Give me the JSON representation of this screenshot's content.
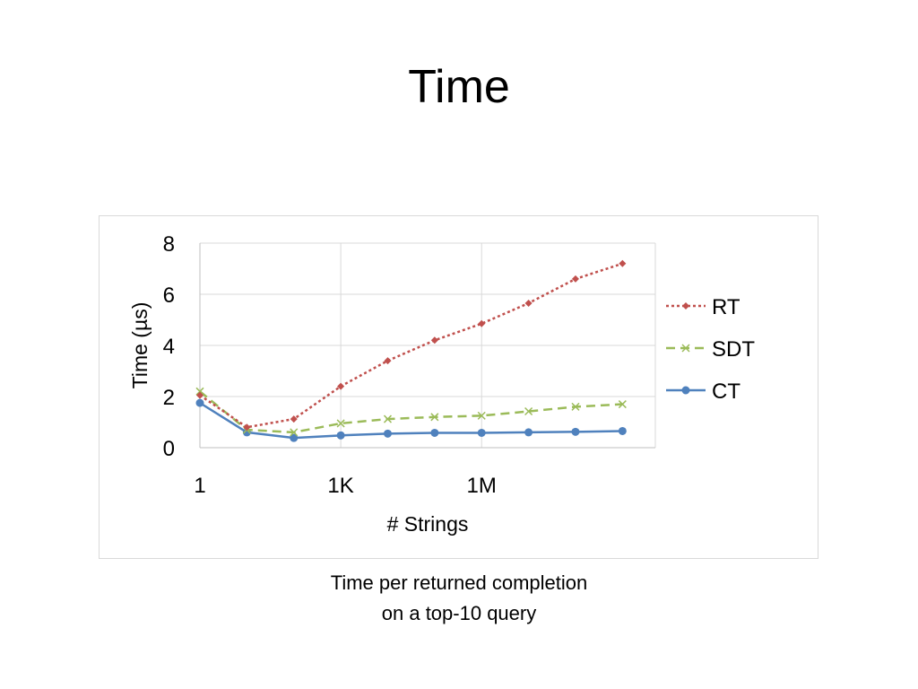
{
  "slide": {
    "title": "Time",
    "caption_line1": "Time per returned completion",
    "caption_line2": "on a top-10 query"
  },
  "chart_data": {
    "type": "line",
    "xlabel": "# Strings",
    "ylabel": "Time (µs)",
    "x_scale": "log",
    "x_points": [
      "1",
      "",
      "",
      "1K",
      "",
      "",
      "1M",
      "",
      "",
      ""
    ],
    "x_tick_labels": [
      "1",
      "1K",
      "1M"
    ],
    "y_ticks": [
      0,
      2,
      4,
      6,
      8
    ],
    "ylim": [
      0,
      8
    ],
    "grid": "vertical and horizontal",
    "legend_position": "right",
    "series": [
      {
        "name": "RT",
        "color": "#c0504d",
        "dash": "dotted",
        "marker": "diamond",
        "values": [
          2.05,
          0.8,
          1.12,
          2.4,
          3.4,
          4.2,
          4.85,
          5.65,
          6.6,
          7.2
        ]
      },
      {
        "name": "SDT",
        "color": "#9bbb59",
        "dash": "dashed",
        "marker": "x",
        "values": [
          2.2,
          0.7,
          0.6,
          0.95,
          1.12,
          1.2,
          1.25,
          1.42,
          1.6,
          1.7
        ]
      },
      {
        "name": "CT",
        "color": "#4f81bd",
        "dash": "solid",
        "marker": "circle",
        "values": [
          1.75,
          0.6,
          0.38,
          0.48,
          0.55,
          0.58,
          0.58,
          0.6,
          0.62,
          0.65
        ]
      }
    ]
  }
}
